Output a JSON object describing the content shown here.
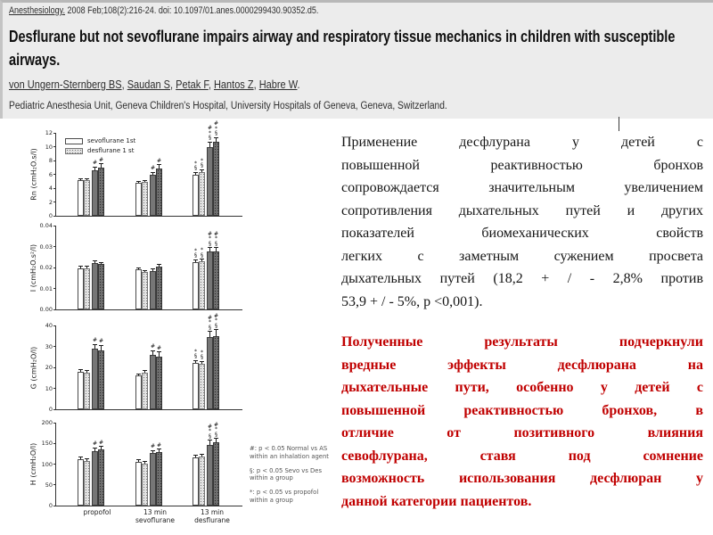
{
  "header": {
    "citation_journal": "Anesthesiology.",
    "citation_rest": " 2008 Feb;108(2):216-24. doi: 10.1097/01.anes.0000299430.90352.d5.",
    "title": "Desflurane but not sevoflurane impairs airway and respiratory tissue mechanics in children with susceptible airways.",
    "authors": [
      "von Ungern-Sternberg BS",
      "Saudan S",
      "Petak F",
      "Hantos Z",
      "Habre W"
    ],
    "affiliation": "Pediatric Anesthesia Unit, Geneva Children's Hospital, University Hospitals of Geneva, Geneva, Switzerland."
  },
  "figure": {
    "legend": [
      "sevoflurane 1st",
      "desflurane 1 st"
    ],
    "legend_panel": "Rn",
    "footnotes": [
      "#: p < 0.05 Normal vs AS within an inhalation agent",
      "§: p < 0.05 Sevo vs Des within a group",
      "*: p < 0.05 vs propofol within a group"
    ]
  },
  "chart_data": [
    {
      "type": "bar",
      "panel": "Rn",
      "ylabel": "Rn (cmH₂O.s/l)",
      "ylim": [
        0,
        12
      ],
      "yticks": [
        "0",
        "2",
        "4",
        "6",
        "8",
        "10",
        "12"
      ],
      "categories": [
        "propofol",
        "13 min\nsevoflurane",
        "13 min\ndesflurane"
      ],
      "series": [
        {
          "name": "sevoflurane 1st (open bar)",
          "values": [
            5.2,
            4.8,
            6.0
          ],
          "errors": [
            0.15,
            0.15,
            0.25
          ],
          "sig": [
            "",
            "",
            "*§"
          ]
        },
        {
          "name": "desflurane 1st (stippled bar)",
          "values": [
            5.15,
            4.85,
            6.3
          ],
          "errors": [
            0.15,
            0.15,
            0.3
          ],
          "sig": [
            "",
            "",
            "*§"
          ]
        },
        {
          "name": "sevoflurane 1st (dark bar)",
          "values": [
            6.6,
            5.9,
            10.0
          ],
          "errors": [
            0.4,
            0.35,
            0.6
          ],
          "sig": [
            "#",
            "#",
            "#*§"
          ]
        },
        {
          "name": "desflurane 1st (dark stippled bar)",
          "values": [
            7.0,
            6.9,
            10.75
          ],
          "errors": [
            0.45,
            0.4,
            0.5
          ],
          "sig": [
            "#",
            "#",
            "#*§"
          ]
        }
      ]
    },
    {
      "type": "bar",
      "panel": "I",
      "ylabel": "I (cmH₂O.s²/l)",
      "ylim": [
        0,
        0.04
      ],
      "yticks": [
        "0.00",
        "0.01",
        "0.02",
        "0.03",
        "0.04"
      ],
      "categories": [
        "propofol",
        "13 min\nsevoflurane",
        "13 min\ndesflurane"
      ],
      "series": [
        {
          "name": "sevoflurane 1st (open bar)",
          "values": [
            0.0197,
            0.0191,
            0.0226
          ],
          "errors": [
            0.0008,
            0.0006,
            0.001
          ],
          "sig": [
            "",
            "",
            "*§"
          ]
        },
        {
          "name": "desflurane 1st (stippled bar)",
          "values": [
            0.0197,
            0.0178,
            0.0228
          ],
          "errors": [
            0.0006,
            0.0005,
            0.001
          ],
          "sig": [
            "",
            "",
            "*§"
          ]
        },
        {
          "name": "sevoflurane 1st (dark bar)",
          "values": [
            0.022,
            0.0184,
            0.0278
          ],
          "errors": [
            0.0008,
            0.0006,
            0.0015
          ],
          "sig": [
            "",
            "",
            "#*§"
          ]
        },
        {
          "name": "desflurane 1st (dark stippled bar)",
          "values": [
            0.0217,
            0.0205,
            0.0278
          ],
          "errors": [
            0.0005,
            0.0007,
            0.0015
          ],
          "sig": [
            "",
            "",
            "#*§"
          ]
        }
      ]
    },
    {
      "type": "bar",
      "panel": "G",
      "ylabel": "G (cmH₂O/l)",
      "ylim": [
        0,
        40
      ],
      "yticks": [
        "0",
        "10",
        "20",
        "30",
        "40"
      ],
      "categories": [
        "propofol",
        "13 min\nsevoflurane",
        "13 min\ndesflurane"
      ],
      "series": [
        {
          "name": "sevoflurane 1st (open bar)",
          "values": [
            18.0,
            16.0,
            22.0
          ],
          "errors": [
            0.8,
            0.7,
            1.0
          ],
          "sig": [
            "",
            "",
            "*§"
          ]
        },
        {
          "name": "desflurane 1st (stippled bar)",
          "values": [
            17.6,
            17.5,
            21.6
          ],
          "errors": [
            0.7,
            0.7,
            1.0
          ],
          "sig": [
            "",
            "",
            "*§"
          ]
        },
        {
          "name": "sevoflurane 1st (dark bar)",
          "values": [
            29.0,
            26.0,
            34.5
          ],
          "errors": [
            1.8,
            1.8,
            2.5
          ],
          "sig": [
            "#",
            "#",
            "#*§"
          ]
        },
        {
          "name": "desflurane 1st (dark stippled bar)",
          "values": [
            28.3,
            25.0,
            35.0
          ],
          "errors": [
            2.0,
            2.2,
            2.8
          ],
          "sig": [
            "#",
            "#",
            "#*§"
          ]
        }
      ]
    },
    {
      "type": "bar",
      "panel": "H",
      "ylabel": "H (cmH₂O/l)",
      "ylim": [
        0,
        200
      ],
      "yticks": [
        "0",
        "50",
        "100",
        "150",
        "200"
      ],
      "categories": [
        "propofol",
        "13 min\nsevoflurane",
        "13 min\ndesflurane"
      ],
      "series": [
        {
          "name": "sevoflurane 1st (open bar)",
          "values": [
            112,
            106,
            117
          ],
          "errors": [
            4,
            4,
            4
          ],
          "sig": [
            "",
            "",
            ""
          ]
        },
        {
          "name": "desflurane 1st (stippled bar)",
          "values": [
            107,
            102,
            118
          ],
          "errors": [
            4,
            3,
            4
          ],
          "sig": [
            "",
            "",
            ""
          ]
        },
        {
          "name": "sevoflurane 1st (dark bar)",
          "values": [
            132,
            127,
            147
          ],
          "errors": [
            6,
            5,
            10
          ],
          "sig": [
            "#",
            "#",
            "#*§"
          ]
        },
        {
          "name": "desflurane 1st (dark stippled bar)",
          "values": [
            135,
            129,
            152
          ],
          "errors": [
            6,
            6,
            9
          ],
          "sig": [
            "#",
            "#",
            "#*§"
          ]
        }
      ]
    }
  ],
  "summary": {
    "paragraph1": "Применение десфлурана у детей с\nповышенной реактивностью бронхов\nсопровождается значительным увеличением\nсопротивления дыхательных путей и других\nпоказателей биомеханических свойств\nлегких с заметным сужением просвета\nдыхательных путей (18,2 + / - 2,8% против\n53,9 + / - 5%, p <0,001).",
    "paragraph2": "Полученные результаты подчеркнули\nвредные эффекты десфлюрана на\nдыхательные пути, особенно у детей с\nповышенной реактивностью бронхов, в\nотличие от позитивного влияния\nсевофлурана, ставя под сомнение\nвозможность использования десфлюран у\nданной категории пациентов."
  },
  "colors": {
    "summary_red": "#c00000",
    "bar_dark": "#767676",
    "bar_light_stipple": "#e2e2e2",
    "header_bg": "#ececec"
  }
}
